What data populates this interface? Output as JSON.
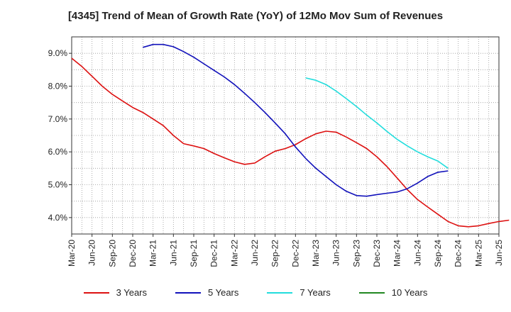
{
  "chart_data": {
    "type": "line",
    "title": "[4345]  Trend of Mean of Growth Rate (YoY) of 12Mo Mov Sum of Revenues",
    "xlabel": "",
    "ylabel": "",
    "ylim": [
      3.5,
      9.5
    ],
    "yticks": [
      4.0,
      5.0,
      6.0,
      7.0,
      8.0,
      9.0
    ],
    "ytick_labels": [
      "4.0%",
      "5.0%",
      "6.0%",
      "7.0%",
      "8.0%",
      "9.0%"
    ],
    "x_tick_labels": [
      "Mar-20",
      "Jun-20",
      "Sep-20",
      "Dec-20",
      "Mar-21",
      "Jun-21",
      "Sep-21",
      "Dec-21",
      "Mar-22",
      "Jun-22",
      "Sep-22",
      "Dec-22",
      "Mar-23",
      "Jun-23",
      "Sep-23",
      "Dec-23",
      "Mar-24",
      "Jun-24",
      "Sep-24",
      "Dec-24",
      "Mar-25",
      "Jun-25"
    ],
    "grid": true,
    "legend_position": "bottom",
    "series": [
      {
        "name": "3 Years",
        "color": "#dd1111",
        "start_index": 0,
        "values": [
          8.85,
          8.6,
          8.3,
          8.0,
          7.75,
          7.55,
          7.35,
          7.2,
          7.0,
          6.8,
          6.5,
          6.25,
          6.18,
          6.1,
          5.95,
          5.82,
          5.7,
          5.62,
          5.66,
          5.85,
          6.02,
          6.1,
          6.22,
          6.4,
          6.55,
          6.63,
          6.6,
          6.45,
          6.28,
          6.1,
          5.85,
          5.55,
          5.2,
          4.85,
          4.55,
          4.32,
          4.1,
          3.88,
          3.75,
          3.72,
          3.75,
          3.82,
          3.88,
          3.92
        ]
      },
      {
        "name": "5 Years",
        "color": "#1111bb",
        "start_index": 7,
        "values": [
          9.18,
          9.27,
          9.27,
          9.2,
          9.05,
          8.88,
          8.68,
          8.48,
          8.28,
          8.05,
          7.78,
          7.5,
          7.2,
          6.88,
          6.55,
          6.15,
          5.8,
          5.5,
          5.25,
          5.0,
          4.8,
          4.67,
          4.65,
          4.7,
          4.74,
          4.78,
          4.88,
          5.05,
          5.25,
          5.38,
          5.42
        ]
      },
      {
        "name": "7 Years",
        "color": "#22dddd",
        "start_index": 23,
        "values": [
          8.25,
          8.18,
          8.05,
          7.85,
          7.62,
          7.38,
          7.12,
          6.88,
          6.62,
          6.38,
          6.18,
          6.0,
          5.85,
          5.72,
          5.5
        ]
      },
      {
        "name": "10 Years",
        "color": "#228822",
        "start_index": 0,
        "values": []
      }
    ]
  }
}
